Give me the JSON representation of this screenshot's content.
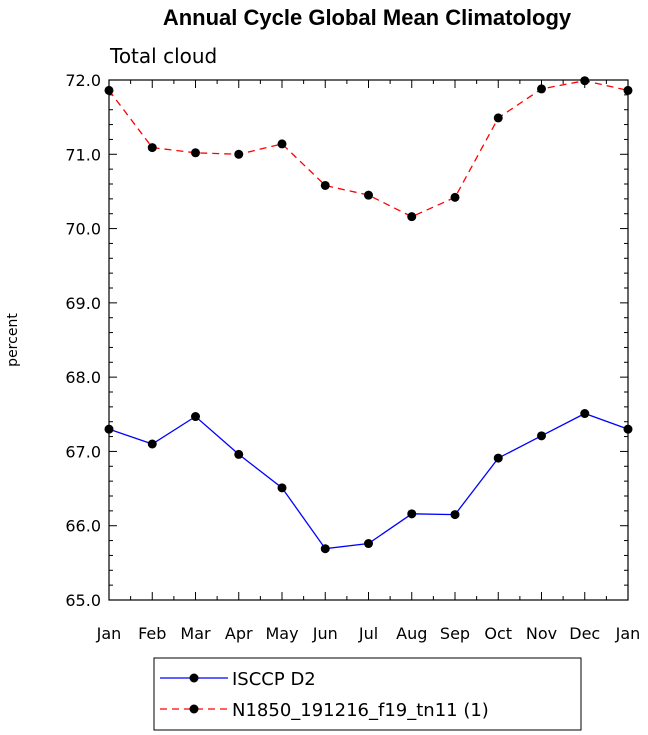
{
  "chart_data": {
    "type": "line",
    "title": "Annual Cycle Global Mean Climatology",
    "subtitle": "Total cloud",
    "xlabel": "",
    "ylabel": "percent",
    "categories": [
      "Jan",
      "Feb",
      "Mar",
      "Apr",
      "May",
      "Jun",
      "Jul",
      "Aug",
      "Sep",
      "Oct",
      "Nov",
      "Dec",
      "Jan"
    ],
    "ylim": [
      65.0,
      72.0
    ],
    "yticks": [
      "65.0",
      "66.0",
      "67.0",
      "68.0",
      "69.0",
      "70.0",
      "71.0",
      "72.0"
    ],
    "series": [
      {
        "name": "ISCCP D2",
        "color": "#0000ff",
        "dash": "solid",
        "values": [
          67.3,
          67.1,
          67.47,
          66.96,
          66.51,
          65.69,
          65.76,
          66.16,
          66.15,
          66.91,
          67.21,
          67.51,
          67.3
        ]
      },
      {
        "name": "N1850_191216_f19_tn11 (1)",
        "color": "#ff0000",
        "dash": "dashed",
        "values": [
          71.86,
          71.09,
          71.02,
          71.0,
          71.14,
          70.58,
          70.45,
          70.16,
          70.42,
          71.49,
          71.88,
          71.99,
          71.86
        ]
      }
    ],
    "marker": "filled-circle",
    "grid": false,
    "legend": "bottom"
  }
}
